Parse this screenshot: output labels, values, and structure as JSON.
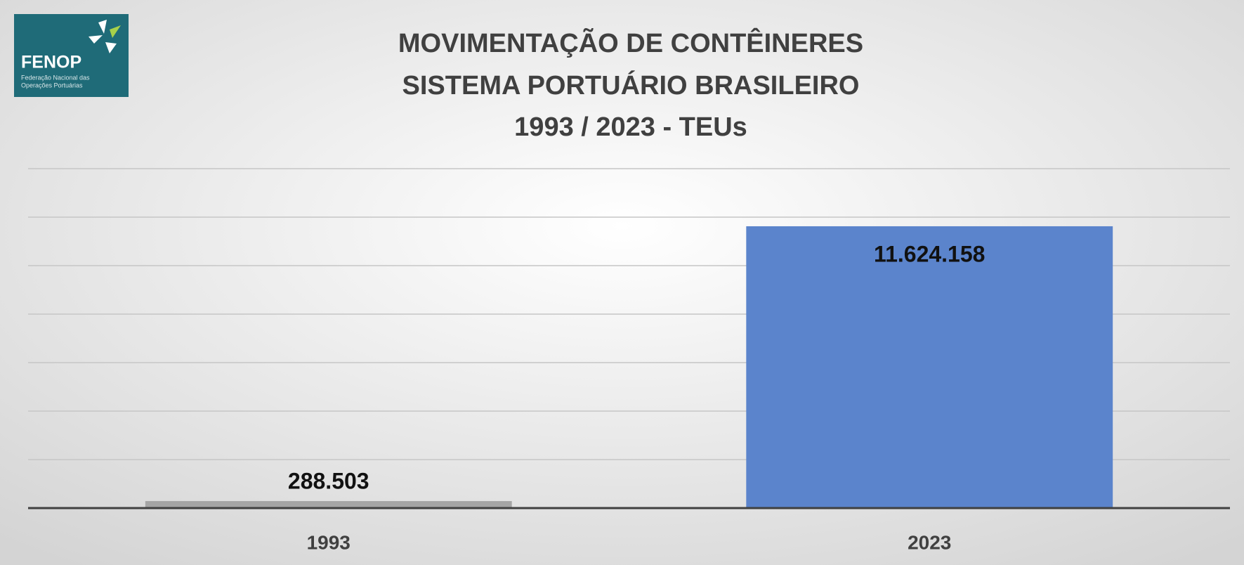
{
  "logo": {
    "name": "FENOP",
    "lines": [
      "Federação Nacional das",
      "Operações Portuárias"
    ]
  },
  "chart_data": {
    "type": "bar",
    "title": [
      "MOVIMENTAÇÃO DE CONTÊINERES",
      "SISTEMA PORTUÁRIO BRASILEIRO",
      "1993 / 2023 - TEUs"
    ],
    "categories": [
      "1993",
      "2023"
    ],
    "values": [
      288503,
      11624158
    ],
    "value_labels": [
      "288.503",
      "11.624.158"
    ],
    "colors": [
      "#a5a5a5",
      "#5b84cc"
    ],
    "ylim": [
      0,
      14000000
    ],
    "yticks": [
      0,
      2000000,
      4000000,
      6000000,
      8000000,
      10000000,
      12000000,
      14000000
    ],
    "grid": true
  }
}
